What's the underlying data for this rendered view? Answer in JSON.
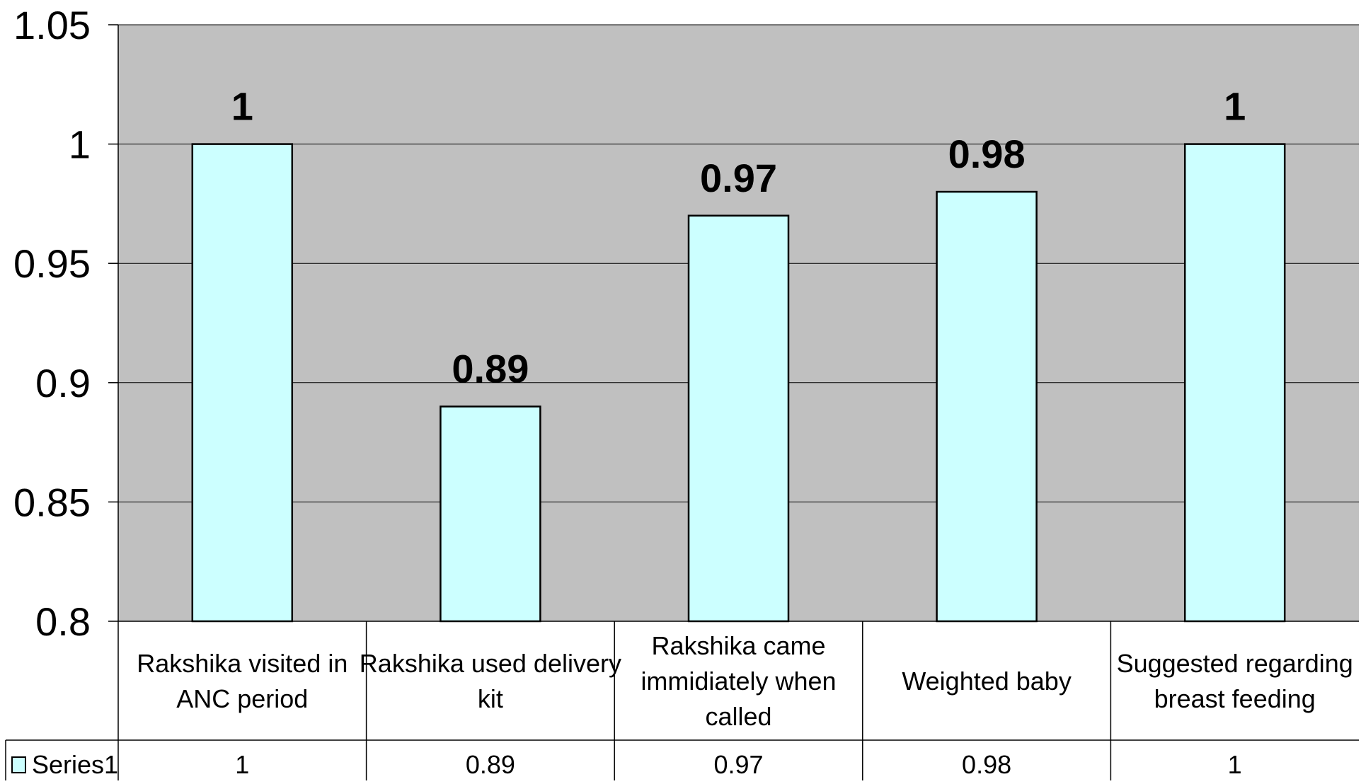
{
  "chart_data": {
    "type": "bar",
    "title": "",
    "xlabel": "",
    "ylabel": "",
    "categories": [
      [
        "Rakshika visited in",
        "ANC period"
      ],
      [
        "Rakshika used delivery",
        "kit"
      ],
      [
        "Rakshika came",
        "immidiately when",
        "called"
      ],
      [
        "Weighted baby"
      ],
      [
        "Suggested regarding",
        "breast feeding"
      ]
    ],
    "series": [
      {
        "name": "Series1",
        "values": [
          1,
          0.89,
          0.97,
          0.98,
          1
        ],
        "labels": [
          "1",
          "0.89",
          "0.97",
          "0.98",
          "1"
        ]
      }
    ],
    "ylim": [
      0.8,
      1.05
    ],
    "yticks": [
      0.8,
      0.85,
      0.9,
      0.95,
      1,
      1.05
    ],
    "ytick_labels": [
      "0.8",
      "0.85",
      "0.9",
      "0.95",
      "1",
      "1.05"
    ],
    "grid": true,
    "legend": "data-table-left",
    "data_table": true,
    "colors": {
      "plot_background": "#c0c0c0",
      "bar_fill": "#ccffff",
      "bar_stroke": "#000000",
      "gridline": "#000000",
      "text": "#000000"
    }
  }
}
